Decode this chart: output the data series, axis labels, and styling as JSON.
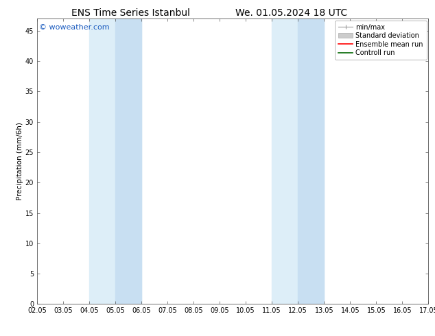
{
  "title_left": "ENS Time Series Istanbul",
  "title_right": "We. 01.05.2024 18 UTC",
  "ylabel": "Precipitation (mm/6h)",
  "xlim": [
    2.05,
    17.05
  ],
  "ylim": [
    0,
    47
  ],
  "yticks": [
    0,
    5,
    10,
    15,
    20,
    25,
    30,
    35,
    40,
    45
  ],
  "xtick_labels": [
    "02.05",
    "03.05",
    "04.05",
    "05.05",
    "06.05",
    "07.05",
    "08.05",
    "09.05",
    "10.05",
    "11.05",
    "12.05",
    "13.05",
    "14.05",
    "15.05",
    "16.05",
    "17.05"
  ],
  "xtick_positions": [
    2.05,
    3.05,
    4.05,
    5.05,
    6.05,
    7.05,
    8.05,
    9.05,
    10.05,
    11.05,
    12.05,
    13.05,
    14.05,
    15.05,
    16.05,
    17.05
  ],
  "shaded_regions": [
    {
      "outer": [
        4.05,
        6.05
      ],
      "inner": [
        5.05,
        6.05
      ]
    },
    {
      "outer": [
        11.05,
        13.05
      ],
      "inner": [
        12.05,
        13.05
      ]
    }
  ],
  "shaded_outer_color": "#ddeef8",
  "shaded_inner_color": "#c8dff2",
  "background_color": "#ffffff",
  "plot_bg_color": "#ffffff",
  "watermark": "© woweather.com",
  "watermark_color": "#1a5bbf",
  "legend_entries": [
    {
      "label": "min/max",
      "color": "#999999",
      "linestyle": "-",
      "linewidth": 0.8
    },
    {
      "label": "Standard deviation",
      "color": "#cccccc",
      "linestyle": "-",
      "linewidth": 5
    },
    {
      "label": "Ensemble mean run",
      "color": "#ff0000",
      "linestyle": "-",
      "linewidth": 1.2
    },
    {
      "label": "Controll run",
      "color": "#006600",
      "linestyle": "-",
      "linewidth": 1.2
    }
  ],
  "title_fontsize": 10,
  "axis_fontsize": 7.5,
  "tick_fontsize": 7,
  "legend_fontsize": 7,
  "watermark_fontsize": 8
}
